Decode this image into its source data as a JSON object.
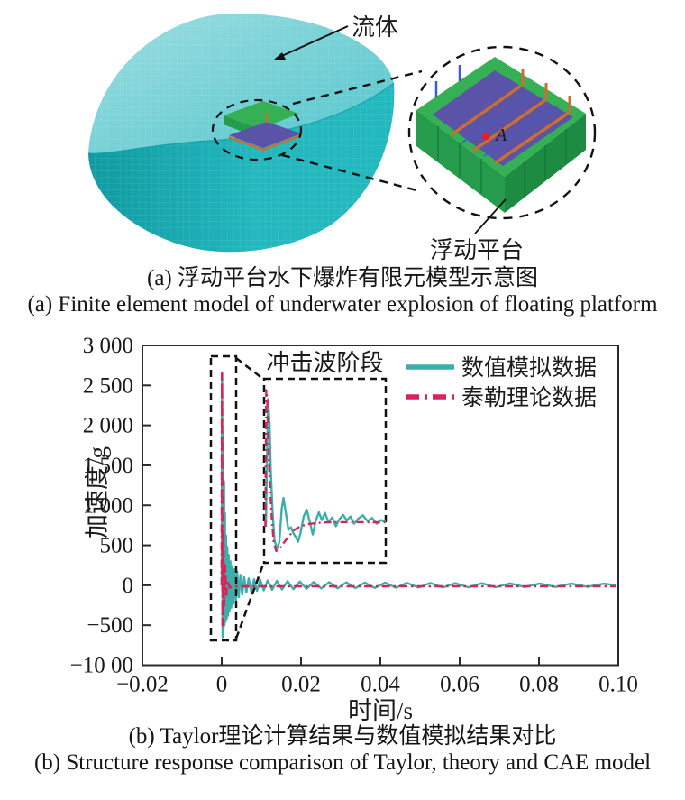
{
  "panel_a": {
    "fluid_label": "流体",
    "platform_label": "浮动平台",
    "marker_label": "A",
    "caption_zh": "(a) 浮动平台水下爆炸有限元模型示意图",
    "caption_en": "(a) Finite element model of underwater explosion of floating platform",
    "colors": {
      "fluid_top_light": "#9ddee1",
      "fluid_top": "#52c5cb",
      "fluid_front_dark": "#0f9aa1",
      "fluid_front": "#22b8be",
      "platform_green_bright": "#35b054",
      "platform_green_mid": "#259c4b",
      "platform_green_dark": "#1d8c42",
      "platform_green_seam": "#14753a",
      "deck_purple": "#5b53a8",
      "beam_orange": "#c96f2f",
      "post_blue": "#3d5ec9",
      "marker_red": "#e51f2f",
      "line_black": "#111111"
    }
  },
  "chart_data": {
    "type": "line",
    "title": "",
    "xlabel": "时间/s",
    "ylabel": "加速度/g",
    "xlim": [
      -0.02,
      0.1
    ],
    "ylim": [
      -1000,
      3000
    ],
    "grid": false,
    "legend_position": "top-right-inside",
    "annotation": "冲击波阶段",
    "x_ticks": [
      -0.02,
      0,
      0.02,
      0.04,
      0.06,
      0.08,
      0.1
    ],
    "x_tick_labels": [
      "−0.02",
      "0",
      "0.02",
      "0.04",
      "0.06",
      "0.08",
      "0.10"
    ],
    "y_ticks": [
      3000,
      2500,
      2000,
      1500,
      1000,
      500,
      0,
      -500,
      -1000
    ],
    "y_tick_labels": [
      "3 000",
      "2 500",
      "2 000",
      "1 500",
      "1 000",
      "500",
      "0",
      "−500",
      "−10 00"
    ],
    "series": [
      {
        "name": "数值模拟数据",
        "color": "#3cafaa",
        "style": "solid",
        "points": [
          [
            0.0,
            0
          ],
          [
            0.0001,
            2550
          ],
          [
            0.00022,
            -650
          ],
          [
            0.00034,
            1900
          ],
          [
            0.00046,
            -560
          ],
          [
            0.00058,
            1300
          ],
          [
            0.0007,
            -500
          ],
          [
            0.00082,
            900
          ],
          [
            0.00096,
            -460
          ],
          [
            0.0011,
            620
          ],
          [
            0.00125,
            -420
          ],
          [
            0.0014,
            480
          ],
          [
            0.00158,
            -380
          ],
          [
            0.00176,
            380
          ],
          [
            0.00196,
            -330
          ],
          [
            0.00218,
            300
          ],
          [
            0.00242,
            -280
          ],
          [
            0.00268,
            240
          ],
          [
            0.00296,
            -230
          ],
          [
            0.00326,
            200
          ],
          [
            0.00358,
            -190
          ],
          [
            0.00392,
            170
          ],
          [
            0.0043,
            -150
          ],
          [
            0.0047,
            130
          ],
          [
            0.00515,
            -115
          ],
          [
            0.00565,
            100
          ],
          [
            0.0062,
            -90
          ],
          [
            0.0068,
            85
          ],
          [
            0.00745,
            -80
          ],
          [
            0.00815,
            75
          ],
          [
            0.0089,
            -70
          ],
          [
            0.0097,
            68
          ],
          [
            0.0106,
            -64
          ],
          [
            0.0116,
            60
          ],
          [
            0.0127,
            -58
          ],
          [
            0.0139,
            55
          ],
          [
            0.0152,
            -52
          ],
          [
            0.0166,
            50
          ],
          [
            0.0181,
            -48
          ],
          [
            0.0197,
            46
          ],
          [
            0.0214,
            -44
          ],
          [
            0.0232,
            42
          ],
          [
            0.0251,
            -40
          ],
          [
            0.0271,
            38
          ],
          [
            0.0292,
            -37
          ],
          [
            0.0314,
            36
          ],
          [
            0.0337,
            -35
          ],
          [
            0.0361,
            34
          ],
          [
            0.0386,
            -33
          ],
          [
            0.0412,
            32
          ],
          [
            0.0439,
            -31
          ],
          [
            0.0467,
            30
          ],
          [
            0.0496,
            -29
          ],
          [
            0.0526,
            28
          ],
          [
            0.0557,
            -27
          ],
          [
            0.0589,
            26
          ],
          [
            0.0622,
            -25
          ],
          [
            0.0656,
            25
          ],
          [
            0.0691,
            -24
          ],
          [
            0.0727,
            23
          ],
          [
            0.0764,
            -22
          ],
          [
            0.0802,
            22
          ],
          [
            0.0841,
            -21
          ],
          [
            0.0881,
            21
          ],
          [
            0.0922,
            -20
          ],
          [
            0.0964,
            20
          ],
          [
            0.0995,
            0
          ]
        ]
      },
      {
        "name": "泰勒理论数据",
        "color": "#d8245a",
        "style": "dash-dot",
        "points": [
          [
            0.0,
            0
          ],
          [
            6e-05,
            2650
          ],
          [
            0.0002,
            -500
          ],
          [
            0.0004,
            700
          ],
          [
            0.0006,
            -250
          ],
          [
            0.00085,
            250
          ],
          [
            0.00115,
            -120
          ],
          [
            0.0015,
            60
          ],
          [
            0.002,
            -30
          ],
          [
            0.003,
            -15
          ],
          [
            0.005,
            -14
          ],
          [
            0.01,
            -13
          ],
          [
            0.02,
            -13
          ],
          [
            0.04,
            -13
          ],
          [
            0.06,
            -13
          ],
          [
            0.08,
            -13
          ],
          [
            0.0995,
            -13
          ]
        ]
      }
    ],
    "zoom_inset": {
      "label": "冲击波阶段",
      "source_rect": {
        "x": [
          -0.003,
          0.004
        ],
        "y": [
          -700,
          2870
        ]
      },
      "window": {
        "x": [
          0,
          0.004
        ],
        "y": [
          -700,
          2870
        ]
      },
      "series": [
        {
          "name": "数值模拟数据",
          "color": "#3cafaa",
          "style": "solid",
          "points": [
            [
              6e-05,
              0
            ],
            [
              0.0001,
              1500
            ],
            [
              0.00013,
              2480
            ],
            [
              0.00018,
              2000
            ],
            [
              0.00022,
              1100
            ],
            [
              0.00028,
              300
            ],
            [
              0.00034,
              -250
            ],
            [
              0.00042,
              -430
            ],
            [
              0.0005,
              -300
            ],
            [
              0.00058,
              350
            ],
            [
              0.00064,
              560
            ],
            [
              0.00072,
              250
            ],
            [
              0.0008,
              -60
            ],
            [
              0.00088,
              -10
            ],
            [
              0.00096,
              -120
            ],
            [
              0.00104,
              -200
            ],
            [
              0.00112,
              -290
            ],
            [
              0.0012,
              -120
            ],
            [
              0.0013,
              200
            ],
            [
              0.0014,
              330
            ],
            [
              0.0015,
              100
            ],
            [
              0.0016,
              -150
            ],
            [
              0.0017,
              120
            ],
            [
              0.0018,
              280
            ],
            [
              0.0019,
              130
            ],
            [
              0.002,
              270
            ],
            [
              0.00212,
              90
            ],
            [
              0.00224,
              180
            ],
            [
              0.00236,
              10
            ],
            [
              0.00248,
              150
            ],
            [
              0.0026,
              230
            ],
            [
              0.00272,
              120
            ],
            [
              0.00284,
              200
            ],
            [
              0.00296,
              60
            ],
            [
              0.0031,
              160
            ],
            [
              0.00325,
              220
            ],
            [
              0.0034,
              110
            ],
            [
              0.00355,
              170
            ],
            [
              0.0037,
              60
            ],
            [
              0.00385,
              130
            ],
            [
              0.004,
              90
            ]
          ]
        },
        {
          "name": "泰勒理论数据",
          "color": "#d8245a",
          "style": "dash-dot",
          "points": [
            [
              4e-05,
              0
            ],
            [
              7e-05,
              2650
            ],
            [
              0.0001,
              2500
            ],
            [
              0.00013,
              1900
            ],
            [
              0.00016,
              1300
            ],
            [
              0.0002,
              700
            ],
            [
              0.00026,
              100
            ],
            [
              0.00032,
              -320
            ],
            [
              0.0004,
              -470
            ],
            [
              0.00052,
              -420
            ],
            [
              0.00066,
              -300
            ],
            [
              0.00082,
              -180
            ],
            [
              0.001,
              -60
            ],
            [
              0.0012,
              10
            ],
            [
              0.00145,
              50
            ],
            [
              0.00175,
              75
            ],
            [
              0.0021,
              85
            ],
            [
              0.0025,
              90
            ],
            [
              0.003,
              90
            ],
            [
              0.0035,
              88
            ],
            [
              0.004,
              88
            ]
          ]
        }
      ]
    },
    "caption_zh": "(b) Taylor理论计算结果与数值模拟结果对比",
    "caption_en": "(b) Structure response comparison of Taylor, theory and CAE model"
  }
}
